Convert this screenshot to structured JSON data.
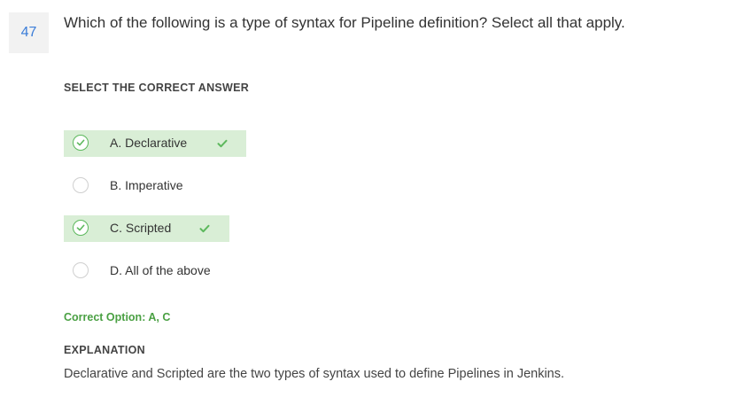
{
  "question": {
    "number": "47",
    "text": "Which of the following is a type of syntax for Pipeline definition? Select all that apply."
  },
  "section_label": "SELECT THE CORRECT ANSWER",
  "options": [
    {
      "label": "A. Declarative",
      "selected": true,
      "correct": true
    },
    {
      "label": "B. Imperative",
      "selected": false,
      "correct": false
    },
    {
      "label": "C. Scripted",
      "selected": true,
      "correct": true
    },
    {
      "label": "D. All of the above",
      "selected": false,
      "correct": false
    }
  ],
  "result": {
    "correct_option_text": "Correct Option: A, C"
  },
  "explanation": {
    "label": "EXPLANATION",
    "text": "Declarative and Scripted are the two types of syntax used to define Pipelines in Jenkins."
  },
  "colors": {
    "question_number": "#3b7dd8",
    "correct_highlight": "#d9eed6",
    "success_green": "#5cb85c"
  },
  "icons": {
    "selected_radio": "check-circle-icon",
    "correct_marker": "checkmark-icon"
  }
}
